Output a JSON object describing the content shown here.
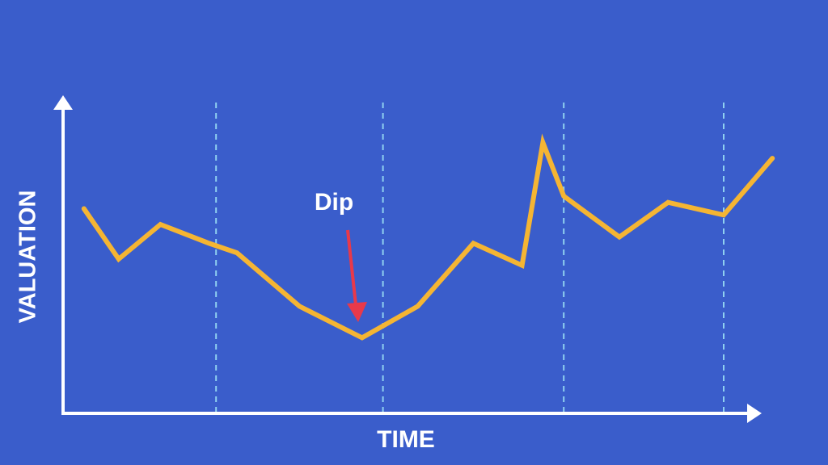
{
  "chart_data": {
    "type": "line",
    "x_label": "TIME",
    "y_label": "VALUATION",
    "annotation": "Dip",
    "x": [
      3,
      8,
      14,
      21,
      25,
      34,
      43,
      51,
      59,
      66,
      69,
      72,
      80,
      87,
      95,
      102
    ],
    "values": [
      65,
      49,
      60,
      54,
      51,
      34,
      24,
      34,
      54,
      47,
      86,
      69,
      56,
      67,
      63,
      81
    ],
    "color": "#f5b533",
    "xlim": [
      0,
      100
    ],
    "ylim": [
      0,
      100
    ],
    "vlines": [
      22,
      46,
      72,
      95
    ]
  }
}
